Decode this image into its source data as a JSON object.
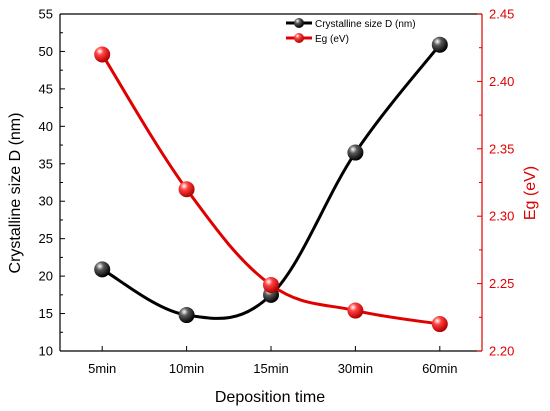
{
  "chart_data": {
    "type": "line",
    "xlabel": "Deposition time",
    "categories": [
      "5min",
      "10min",
      "15min",
      "30min",
      "60min"
    ],
    "y_left": {
      "label": "Crystalline size D (nm)",
      "lim": [
        10,
        55
      ],
      "ticks": [
        "10",
        "15",
        "20",
        "25",
        "30",
        "35",
        "40",
        "45",
        "50",
        "55"
      ],
      "color": "#000000"
    },
    "y_right": {
      "label": "Eg (eV)",
      "lim": [
        2.2,
        2.45
      ],
      "ticks": [
        "2.20",
        "2.25",
        "2.30",
        "2.35",
        "2.40",
        "2.45"
      ],
      "color": "#e00000"
    },
    "series": [
      {
        "name": "Crystalline size D (nm)",
        "axis": "left",
        "color": "#000000",
        "values": [
          20.9,
          14.8,
          17.5,
          36.5,
          50.9
        ]
      },
      {
        "name": "Eg (eV)",
        "axis": "right",
        "color": "#e00000",
        "values": [
          2.42,
          2.32,
          2.249,
          2.23,
          2.22
        ]
      }
    ],
    "legend": "top-right",
    "grid": false
  }
}
